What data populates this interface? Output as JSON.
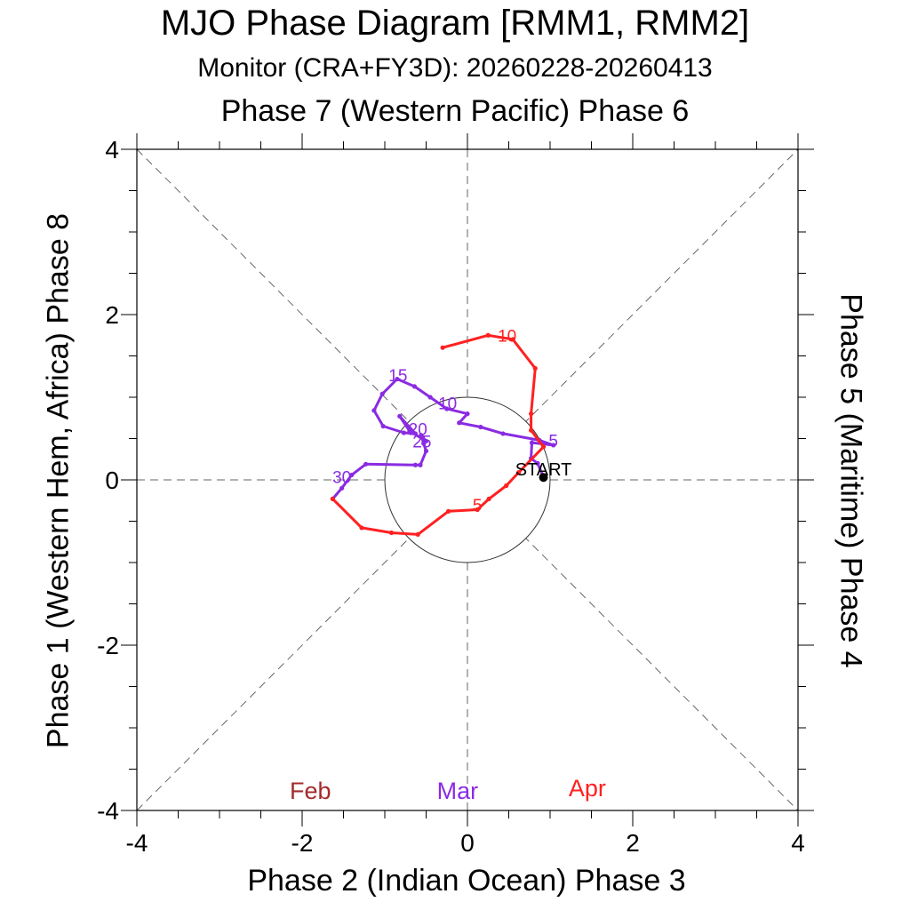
{
  "chart_data": {
    "type": "line",
    "title": "MJO Phase Diagram [RMM1, RMM2]",
    "subtitle": "Monitor (CRA+FY3D): 20260228-20260413",
    "top_label": "Phase 7 (Western Pacific) Phase 6",
    "bottom_label": "Phase 2 (Indian Ocean) Phase 3",
    "left_label": "Phase 1 (Western Hem, Africa) Phase 8",
    "right_label": "Phase 5 (Maritime) Phase 4",
    "xlim": [
      -4,
      4
    ],
    "ylim": [
      -4,
      4
    ],
    "x_ticks": [
      -4,
      -2,
      0,
      2,
      4
    ],
    "y_ticks": [
      -4,
      -2,
      0,
      2,
      4
    ],
    "x_tick_labels": [
      "-4",
      "-2",
      "0",
      "2",
      "4"
    ],
    "y_tick_labels": [
      "-4",
      "-2",
      "0",
      "2",
      "4"
    ],
    "unit_circle_radius": 1,
    "start": {
      "label": "START",
      "x": 0.92,
      "y": 0.03
    },
    "month_legend": [
      {
        "name": "Feb",
        "color": "#a52a2a",
        "x": -1.9,
        "y": -3.75
      },
      {
        "name": "Mar",
        "color": "#8a2be2",
        "x": -0.12,
        "y": -3.75
      },
      {
        "name": "Apr",
        "color": "#ff2020",
        "x": 1.45,
        "y": -3.72
      }
    ],
    "series": [
      {
        "name": "Mar",
        "color": "#8a2be2",
        "points": [
          [
            0.92,
            0.03
          ],
          [
            0.85,
            0.2
          ],
          [
            0.77,
            0.26
          ],
          [
            0.78,
            0.45
          ],
          [
            1.04,
            0.42
          ],
          [
            0.87,
            0.48
          ],
          [
            0.43,
            0.56
          ],
          [
            0.16,
            0.64
          ],
          [
            -0.1,
            0.69
          ],
          [
            0.0,
            0.8
          ],
          [
            -0.25,
            0.86
          ],
          [
            -0.45,
            1.0
          ],
          [
            -0.64,
            1.13
          ],
          [
            -0.85,
            1.22
          ],
          [
            -1.03,
            1.04
          ],
          [
            -1.13,
            0.84
          ],
          [
            -1.02,
            0.65
          ],
          [
            -0.77,
            0.57
          ],
          [
            -0.63,
            0.56
          ],
          [
            -0.82,
            0.77
          ],
          [
            -0.7,
            0.59
          ],
          [
            -0.5,
            0.47
          ],
          [
            -0.56,
            0.54
          ],
          [
            -0.53,
            0.44
          ],
          [
            -0.5,
            0.35
          ],
          [
            -0.57,
            0.18
          ],
          [
            -0.63,
            0.18
          ],
          [
            -1.23,
            0.19
          ],
          [
            -1.4,
            0.06
          ],
          [
            -1.52,
            -0.1
          ],
          [
            -1.63,
            -0.23
          ]
        ],
        "labels": [
          {
            "text": "5",
            "x": 1.04,
            "y": 0.48
          },
          {
            "text": "10",
            "x": -0.24,
            "y": 0.93
          },
          {
            "text": "15",
            "x": -0.84,
            "y": 1.27
          },
          {
            "text": "20",
            "x": -0.6,
            "y": 0.62
          },
          {
            "text": "25",
            "x": -0.55,
            "y": 0.47
          },
          {
            "text": "30",
            "x": -1.52,
            "y": 0.04
          }
        ]
      },
      {
        "name": "Apr",
        "color": "#ff2020",
        "points": [
          [
            -1.63,
            -0.23
          ],
          [
            -1.28,
            -0.58
          ],
          [
            -0.92,
            -0.64
          ],
          [
            -0.6,
            -0.66
          ],
          [
            -0.23,
            -0.38
          ],
          [
            0.12,
            -0.36
          ],
          [
            0.26,
            -0.23
          ],
          [
            0.47,
            -0.07
          ],
          [
            0.62,
            0.09
          ],
          [
            0.92,
            0.4
          ],
          [
            0.77,
            0.6
          ],
          [
            0.77,
            0.8
          ],
          [
            0.82,
            1.35
          ],
          [
            0.55,
            1.7
          ],
          [
            0.25,
            1.75
          ],
          [
            -0.3,
            1.6
          ]
        ],
        "labels": [
          {
            "text": "5",
            "x": 0.12,
            "y": -0.3
          },
          {
            "text": "10",
            "x": 0.48,
            "y": 1.75
          }
        ]
      }
    ]
  }
}
